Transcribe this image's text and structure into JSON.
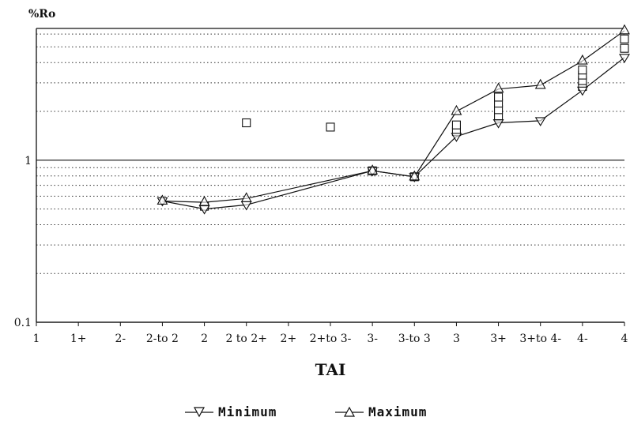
{
  "chart_data": {
    "type": "line",
    "title": "",
    "xlabel": "TAI",
    "ylabel": "%Ro",
    "yscale": "log",
    "ylim": [
      0.1,
      6.5
    ],
    "yticks": [
      {
        "value": 0.1,
        "label": "0.1"
      },
      {
        "value": 1,
        "label": "1"
      }
    ],
    "categories": [
      "1",
      "1+",
      "2-",
      "2-to 2",
      "2",
      "2 to 2+",
      "2+",
      "2+to 3-",
      "3-",
      "3-to 3",
      "3",
      "3+",
      "3+to 4-",
      "4-",
      "4"
    ],
    "series": [
      {
        "name": "Minimum",
        "marker": "triangle-down",
        "x": [
          "2-to 2",
          "2",
          "2 to 2+",
          "3-",
          "3-to 3",
          "3",
          "3+",
          "3+to 4-",
          "4-",
          "4"
        ],
        "values": [
          0.56,
          0.5,
          0.53,
          0.86,
          0.79,
          1.4,
          1.7,
          1.75,
          2.7,
          4.3
        ]
      },
      {
        "name": "Maximum",
        "marker": "triangle-up",
        "x": [
          "2-to 2",
          "2",
          "2 to 2+",
          "3-",
          "3-to 3",
          "3",
          "3+",
          "3+to 4-",
          "4-",
          "4"
        ],
        "values": [
          0.56,
          0.55,
          0.58,
          0.86,
          0.79,
          2.0,
          2.75,
          2.9,
          4.1,
          6.3
        ]
      }
    ],
    "observations": {
      "marker": "square",
      "points": [
        {
          "x": "2",
          "y": 0.52
        },
        {
          "x": "2 to 2+",
          "y": 1.7
        },
        {
          "x": "2+to 3-",
          "y": 1.6
        },
        {
          "x": "3-",
          "y": 0.86
        },
        {
          "x": "3-to 3",
          "y": 0.79
        },
        {
          "x": "3",
          "y": 1.5
        },
        {
          "x": "3",
          "y": 1.65
        },
        {
          "x": "3+",
          "y": 1.85
        },
        {
          "x": "3+",
          "y": 2.05
        },
        {
          "x": "3+",
          "y": 2.25
        },
        {
          "x": "3+",
          "y": 2.45
        },
        {
          "x": "4-",
          "y": 2.85
        },
        {
          "x": "4-",
          "y": 3.1
        },
        {
          "x": "4-",
          "y": 3.35
        },
        {
          "x": "4-",
          "y": 3.6
        },
        {
          "x": "4",
          "y": 4.9
        },
        {
          "x": "4",
          "y": 5.6
        }
      ]
    },
    "grid": true,
    "legend": "bottom-center"
  }
}
